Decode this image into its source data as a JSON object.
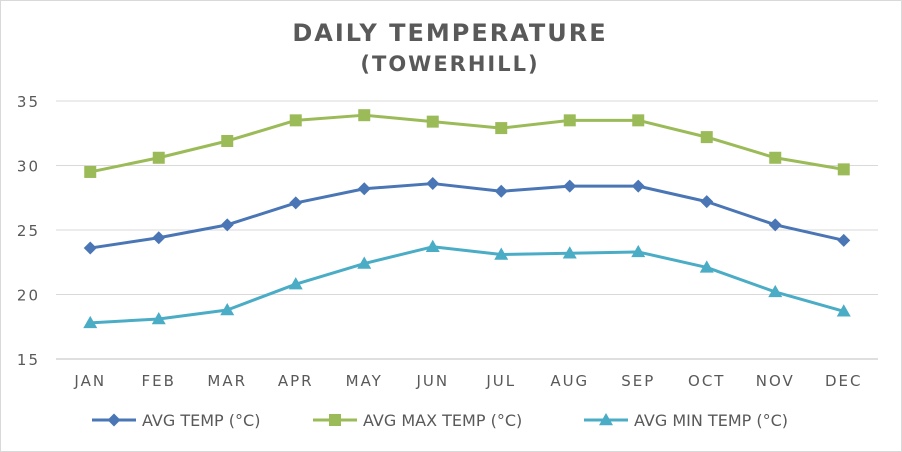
{
  "chart_data": {
    "type": "line",
    "title": "DAILY TEMPERATURE",
    "subtitle": "(TOWERHILL)",
    "xlabel": "",
    "ylabel": "",
    "categories": [
      "JAN",
      "FEB",
      "MAR",
      "APR",
      "MAY",
      "JUN",
      "JUL",
      "AUG",
      "SEP",
      "OCT",
      "NOV",
      "DEC"
    ],
    "ylim": [
      15,
      35
    ],
    "yticks": [
      "15",
      "20",
      "25",
      "30",
      "35"
    ],
    "grid": true,
    "legend_position": "bottom",
    "series": [
      {
        "name": "AVG TEMP (°C)",
        "color": "#4a76b5",
        "marker": "diamond",
        "values": [
          23.6,
          24.4,
          25.4,
          27.1,
          28.2,
          28.6,
          28.0,
          28.4,
          28.4,
          27.2,
          25.4,
          24.2
        ]
      },
      {
        "name": "AVG MAX TEMP (°C)",
        "color": "#9bbb59",
        "marker": "square",
        "values": [
          29.5,
          30.6,
          31.9,
          33.5,
          33.9,
          33.4,
          32.9,
          33.5,
          33.5,
          32.2,
          30.6,
          29.7
        ]
      },
      {
        "name": "AVG MIN TEMP (°C)",
        "color": "#4bacc6",
        "marker": "triangle",
        "values": [
          17.8,
          18.1,
          18.8,
          20.8,
          22.4,
          23.7,
          23.1,
          23.2,
          23.3,
          22.1,
          20.2,
          18.7
        ]
      }
    ]
  }
}
